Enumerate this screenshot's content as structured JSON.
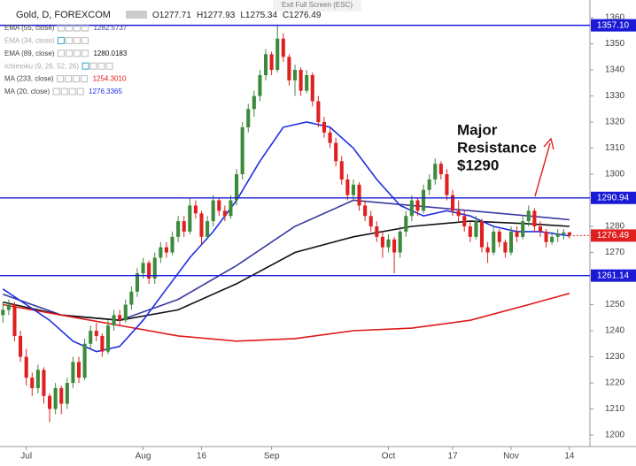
{
  "chart_data": {
    "type": "candlestick",
    "title": "Gold, D, FOREXCOM",
    "banner": "Exit Full Screen (ESC)",
    "ohlc": [
      {
        "label": "O",
        "value": 1277.71
      },
      {
        "label": "H",
        "value": 1277.93
      },
      {
        "label": "L",
        "value": 1275.34
      },
      {
        "label": "C",
        "value": 1276.49
      }
    ],
    "up_color": "#3c8a3c",
    "down_color": "#e02020",
    "candles": [
      [
        1246,
        1251,
        1243,
        1248
      ],
      [
        1248,
        1252,
        1246,
        1250
      ],
      [
        1250,
        1251,
        1236,
        1238
      ],
      [
        1238,
        1240,
        1228,
        1230
      ],
      [
        1230,
        1233,
        1219,
        1222
      ],
      [
        1222,
        1224,
        1215,
        1218
      ],
      [
        1218,
        1227,
        1216,
        1225
      ],
      [
        1225,
        1226,
        1212,
        1215
      ],
      [
        1215,
        1216,
        1205,
        1210
      ],
      [
        1210,
        1220,
        1208,
        1218
      ],
      [
        1218,
        1219,
        1208,
        1212
      ],
      [
        1212,
        1222,
        1210,
        1220
      ],
      [
        1220,
        1230,
        1218,
        1228
      ],
      [
        1228,
        1230,
        1220,
        1222
      ],
      [
        1222,
        1237,
        1221,
        1235
      ],
      [
        1235,
        1242,
        1233,
        1240
      ],
      [
        1240,
        1243,
        1236,
        1238
      ],
      [
        1238,
        1239,
        1230,
        1232
      ],
      [
        1232,
        1244,
        1231,
        1242
      ],
      [
        1242,
        1248,
        1240,
        1246
      ],
      [
        1246,
        1248,
        1242,
        1244
      ],
      [
        1244,
        1252,
        1243,
        1250
      ],
      [
        1250,
        1257,
        1248,
        1255
      ],
      [
        1255,
        1264,
        1253,
        1262
      ],
      [
        1262,
        1268,
        1260,
        1266
      ],
      [
        1266,
        1267,
        1258,
        1260
      ],
      [
        1260,
        1270,
        1258,
        1268
      ],
      [
        1268,
        1274,
        1266,
        1272
      ],
      [
        1272,
        1274,
        1268,
        1270
      ],
      [
        1270,
        1278,
        1269,
        1276
      ],
      [
        1276,
        1284,
        1274,
        1282
      ],
      [
        1282,
        1284,
        1276,
        1278
      ],
      [
        1278,
        1291,
        1277,
        1288
      ],
      [
        1288,
        1290,
        1283,
        1285
      ],
      [
        1285,
        1286,
        1273,
        1276
      ],
      [
        1276,
        1284,
        1275,
        1282
      ],
      [
        1282,
        1292,
        1280,
        1290
      ],
      [
        1290,
        1291,
        1284,
        1286
      ],
      [
        1286,
        1288,
        1282,
        1284
      ],
      [
        1284,
        1292,
        1283,
        1290
      ],
      [
        1290,
        1302,
        1288,
        1300
      ],
      [
        1300,
        1320,
        1298,
        1318
      ],
      [
        1318,
        1327,
        1316,
        1325
      ],
      [
        1325,
        1332,
        1322,
        1330
      ],
      [
        1330,
        1340,
        1328,
        1338
      ],
      [
        1338,
        1348,
        1336,
        1346
      ],
      [
        1346,
        1347,
        1338,
        1340
      ],
      [
        1340,
        1357,
        1339,
        1352
      ],
      [
        1352,
        1354,
        1343,
        1345
      ],
      [
        1345,
        1346,
        1334,
        1336
      ],
      [
        1336,
        1342,
        1330,
        1340
      ],
      [
        1340,
        1341,
        1330,
        1332
      ],
      [
        1332,
        1340,
        1331,
        1338
      ],
      [
        1338,
        1339,
        1326,
        1328
      ],
      [
        1328,
        1330,
        1318,
        1320
      ],
      [
        1320,
        1322,
        1314,
        1316
      ],
      [
        1316,
        1318,
        1310,
        1312
      ],
      [
        1312,
        1314,
        1303,
        1305
      ],
      [
        1305,
        1307,
        1296,
        1298
      ],
      [
        1298,
        1300,
        1290,
        1292
      ],
      [
        1292,
        1298,
        1290,
        1296
      ],
      [
        1296,
        1297,
        1286,
        1288
      ],
      [
        1288,
        1290,
        1282,
        1284
      ],
      [
        1284,
        1286,
        1278,
        1280
      ],
      [
        1280,
        1282,
        1274,
        1276
      ],
      [
        1276,
        1278,
        1268,
        1272
      ],
      [
        1272,
        1277,
        1270,
        1275
      ],
      [
        1275,
        1276,
        1262,
        1270
      ],
      [
        1270,
        1280,
        1268,
        1278
      ],
      [
        1278,
        1286,
        1276,
        1284
      ],
      [
        1284,
        1292,
        1282,
        1290
      ],
      [
        1290,
        1291,
        1284,
        1286
      ],
      [
        1286,
        1296,
        1285,
        1294
      ],
      [
        1294,
        1300,
        1292,
        1298
      ],
      [
        1298,
        1306,
        1296,
        1304
      ],
      [
        1304,
        1305,
        1298,
        1300
      ],
      [
        1300,
        1302,
        1290,
        1292
      ],
      [
        1292,
        1294,
        1284,
        1286
      ],
      [
        1286,
        1290,
        1282,
        1284
      ],
      [
        1284,
        1286,
        1278,
        1280
      ],
      [
        1280,
        1282,
        1274,
        1276
      ],
      [
        1276,
        1284,
        1275,
        1282
      ],
      [
        1282,
        1283,
        1270,
        1272
      ],
      [
        1272,
        1274,
        1266,
        1270
      ],
      [
        1270,
        1280,
        1269,
        1278
      ],
      [
        1278,
        1279,
        1272,
        1274
      ],
      [
        1274,
        1275,
        1268,
        1270
      ],
      [
        1270,
        1280,
        1269,
        1278
      ],
      [
        1278,
        1280,
        1274,
        1276
      ],
      [
        1276,
        1284,
        1275,
        1282
      ],
      [
        1282,
        1288,
        1280,
        1286
      ],
      [
        1286,
        1287,
        1278,
        1280
      ],
      [
        1280,
        1282,
        1276,
        1278
      ],
      [
        1278,
        1279,
        1272,
        1274
      ],
      [
        1274,
        1278,
        1273,
        1276
      ],
      [
        1276,
        1279,
        1274,
        1277
      ],
      [
        1277,
        1279,
        1275,
        1277.71
      ],
      [
        1277.71,
        1277.93,
        1275.34,
        1276.49
      ]
    ],
    "indicators": [
      {
        "name": "EMA (55, close)",
        "value": 1282.5737,
        "color": "#3a3aa0",
        "x": [
          0,
          10,
          20,
          30,
          40,
          50,
          60,
          70,
          80,
          90,
          97
        ],
        "values": [
          1254,
          1246,
          1244,
          1252,
          1265,
          1280,
          1290,
          1288,
          1286,
          1284,
          1282.57
        ]
      },
      {
        "name": "EMA (34, close)",
        "color": "#b0b0b0"
      },
      {
        "name": "EMA (89, close)",
        "value": 1280.0183,
        "color": "#111111",
        "x": [
          0,
          10,
          20,
          30,
          40,
          50,
          60,
          70,
          80,
          90,
          97
        ],
        "values": [
          1251,
          1246,
          1244,
          1248,
          1258,
          1270,
          1276,
          1280,
          1282,
          1281,
          1280.02
        ]
      },
      {
        "name": "Ichimoku (9, 26, 52, 26)",
        "color": "#b0b0b0"
      },
      {
        "name": "MA (233, close)",
        "value": 1254.301,
        "value_label": "1254.3010",
        "color": "#e01818",
        "x": [
          0,
          10,
          20,
          30,
          40,
          50,
          60,
          70,
          80,
          90,
          97
        ],
        "values": [
          1250,
          1246,
          1242,
          1238,
          1236,
          1237,
          1240,
          1241,
          1244,
          1250,
          1254.3
        ]
      },
      {
        "name": "MA (20, close)",
        "value": 1276.3365,
        "color": "#1e2ee0",
        "x": [
          0,
          4,
          8,
          12,
          16,
          20,
          24,
          28,
          32,
          36,
          40,
          44,
          48,
          52,
          56,
          60,
          64,
          68,
          72,
          76,
          80,
          84,
          88,
          92,
          97
        ],
        "values": [
          1256,
          1250,
          1244,
          1236,
          1232,
          1234,
          1244,
          1256,
          1268,
          1278,
          1290,
          1305,
          1318,
          1320,
          1318,
          1310,
          1298,
          1288,
          1284,
          1286,
          1284,
          1280,
          1278,
          1278,
          1276.34
        ]
      }
    ],
    "levels": [
      {
        "value": 1357.1,
        "label": "1357.10"
      },
      {
        "value": 1290.94,
        "label": "1290.94"
      },
      {
        "value": 1261.14,
        "label": "1261.14"
      }
    ],
    "level_color": "#1a1ad6",
    "last_price": 1276.49,
    "annotation": [
      "Major",
      "Resistance",
      "$1290"
    ],
    "xlim": [
      -0.5,
      100.5
    ],
    "xticks": [
      {
        "value": 4,
        "label": "Jul"
      },
      {
        "value": 24,
        "label": "Aug"
      },
      {
        "value": 34,
        "label": "16"
      },
      {
        "value": 46,
        "label": "Sep"
      },
      {
        "value": 66,
        "label": "Oct"
      },
      {
        "value": 77,
        "label": "17"
      },
      {
        "value": 87,
        "label": "Nov"
      },
      {
        "value": 97,
        "label": "14"
      }
    ],
    "ylim": [
      1195.6,
      1366.8
    ],
    "yticks": [
      1200,
      1210,
      1220,
      1230,
      1240,
      1250,
      1260,
      1270,
      1280,
      1290,
      1300,
      1310,
      1320,
      1330,
      1340,
      1350,
      1360
    ]
  }
}
